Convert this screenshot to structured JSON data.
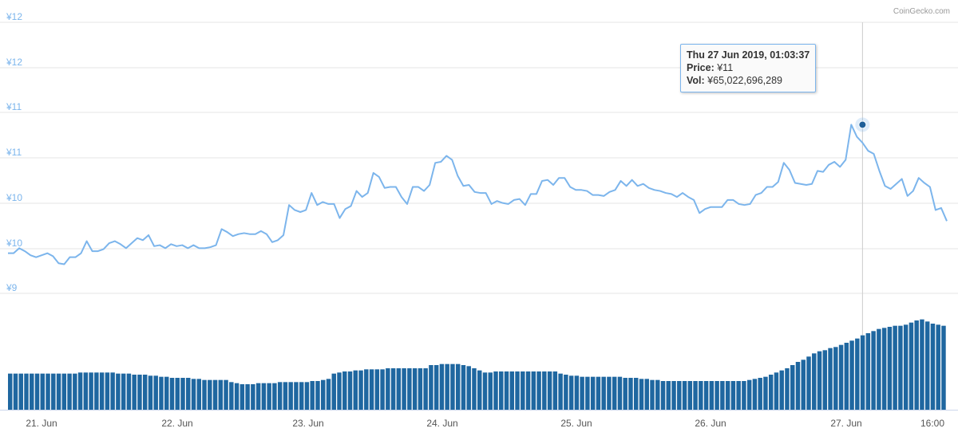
{
  "credit": "CoinGecko.com",
  "tooltip": {
    "date": "Thu 27 Jun 2019, 01:03:37",
    "price_label": "Price:",
    "price_value": "¥11",
    "vol_label": "Vol:",
    "vol_value": "¥65,022,696,289"
  },
  "colors": {
    "price_line": "#7cb5ec",
    "volume_bars": "#1f67a0",
    "marker": "#1f5f99",
    "grid": "#e6e6e6",
    "crosshair": "#cccccc"
  },
  "chart_data": [
    {
      "type": "line",
      "series": [
        {
          "values": [
            10.0,
            10.0,
            10.05,
            10.02,
            9.98,
            9.96,
            9.98,
            10.0,
            9.97,
            9.9,
            9.89,
            9.96,
            9.96,
            10.0,
            10.12,
            10.02,
            10.02,
            10.04,
            10.1,
            10.12,
            10.09,
            10.05,
            10.1,
            10.15,
            10.13,
            10.18,
            10.07,
            10.08,
            10.05,
            10.09,
            10.07,
            10.08,
            10.05,
            10.08,
            10.05,
            10.05,
            10.06,
            10.08,
            10.24,
            10.21,
            10.17,
            10.19,
            10.2,
            10.19,
            10.19,
            10.22,
            10.19,
            10.11,
            10.13,
            10.18,
            10.48,
            10.43,
            10.41,
            10.43,
            10.6,
            10.48,
            10.51,
            10.49,
            10.49,
            10.35,
            10.44,
            10.47,
            10.62,
            10.56,
            10.6,
            10.8,
            10.76,
            10.65,
            10.66,
            10.66,
            10.56,
            10.49,
            10.66,
            10.66,
            10.62,
            10.68,
            10.9,
            10.91,
            10.97,
            10.93,
            10.77,
            10.67,
            10.68,
            10.61,
            10.6,
            10.6,
            10.49,
            10.52,
            10.5,
            10.49,
            10.53,
            10.54,
            10.48,
            10.59,
            10.59,
            10.72,
            10.73,
            10.68,
            10.75,
            10.75,
            10.66,
            10.63,
            10.63,
            10.62,
            10.58,
            10.58,
            10.57,
            10.61,
            10.63,
            10.72,
            10.67,
            10.73,
            10.67,
            10.69,
            10.65,
            10.63,
            10.62,
            10.6,
            10.59,
            10.56,
            10.6,
            10.56,
            10.53,
            10.4,
            10.44,
            10.46,
            10.46,
            10.46,
            10.53,
            10.53,
            10.49,
            10.48,
            10.49,
            10.58,
            10.6,
            10.66,
            10.66,
            10.71,
            10.9,
            10.83,
            10.7,
            10.69,
            10.68,
            10.69,
            10.82,
            10.81,
            10.88,
            10.91,
            10.86,
            10.93,
            11.28,
            11.16,
            11.1,
            11.02,
            10.99,
            10.82,
            10.67,
            10.64,
            10.69,
            10.74,
            10.57,
            10.62,
            10.75,
            10.7,
            10.66,
            10.43,
            10.45,
            10.32
          ]
        }
      ],
      "yticks": [
        "¥12",
        "¥12",
        "¥11",
        "¥11",
        "¥10",
        "¥10",
        "¥9"
      ],
      "ylim": [
        9.6,
        12.3
      ],
      "xticks": [
        "21. Jun",
        "22. Jun",
        "23. Jun",
        "24. Jun",
        "25. Jun",
        "26. Jun",
        "27. Jun",
        "16:00"
      ],
      "highlight": {
        "index": 152,
        "value": 11.28
      },
      "grid": true
    },
    {
      "type": "bar",
      "series": [
        {
          "values": [
            34,
            34,
            34,
            34,
            34,
            34,
            34,
            34,
            34,
            34,
            34,
            34,
            34,
            35,
            35,
            35,
            35,
            35,
            35,
            35,
            34,
            34,
            34,
            33,
            33,
            33,
            32,
            32,
            31,
            31,
            30,
            30,
            30,
            30,
            29,
            29,
            28,
            28,
            28,
            28,
            28,
            26,
            25,
            24,
            24,
            24,
            25,
            25,
            25,
            25,
            26,
            26,
            26,
            26,
            26,
            26,
            27,
            27,
            28,
            29,
            34,
            35,
            36,
            36,
            37,
            37,
            38,
            38,
            38,
            38,
            39,
            39,
            39,
            39,
            39,
            39,
            39,
            39,
            42,
            42,
            43,
            43,
            43,
            43,
            42,
            41,
            39,
            37,
            35,
            35,
            36,
            36,
            36,
            36,
            36,
            36,
            36,
            36,
            36,
            36,
            36,
            36,
            34,
            33,
            32,
            32,
            31,
            31,
            31,
            31,
            31,
            31,
            31,
            31,
            30,
            30,
            30,
            29,
            29,
            28,
            28,
            27,
            27,
            27,
            27,
            27,
            27,
            27,
            27,
            27,
            27,
            27,
            27,
            27,
            27,
            27,
            27,
            28,
            29,
            30,
            31,
            33,
            35,
            37,
            39,
            42,
            45,
            47,
            50,
            53,
            55,
            56,
            58,
            59,
            61,
            63,
            65,
            67,
            70,
            72,
            74,
            76,
            77,
            78,
            79,
            79,
            80,
            82,
            84,
            85,
            83,
            81,
            80,
            79
          ]
        }
      ]
    }
  ]
}
